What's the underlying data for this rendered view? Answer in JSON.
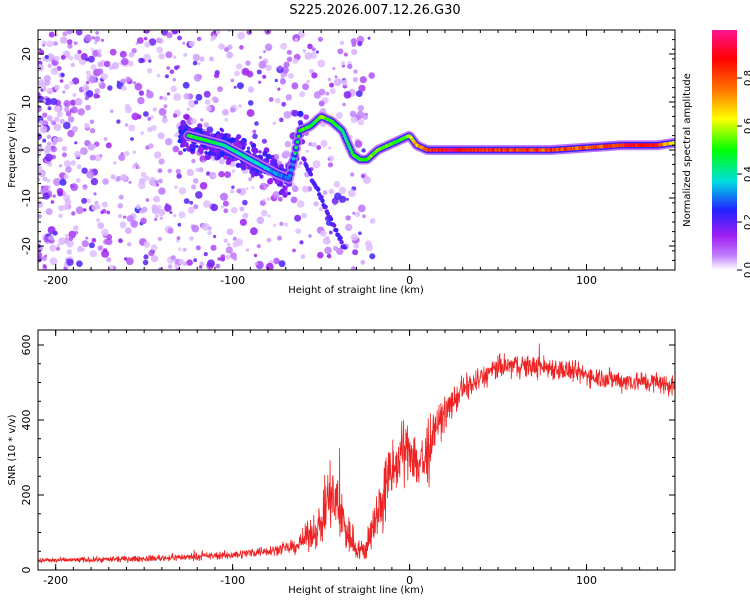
{
  "title": "S225.2026.007.12.26.G30",
  "chart_data": [
    {
      "type": "heatmap",
      "name": "spectrogram",
      "xlabel": "Height of straight line (km)",
      "ylabel": "Frequency (Hz)",
      "xlim": [
        -210,
        150
      ],
      "ylim": [
        -25,
        25
      ],
      "xticks": [
        -200,
        -100,
        0,
        100
      ],
      "yticks": [
        -20,
        -10,
        0,
        10,
        20
      ],
      "colorbar": {
        "label": "Normalized spectral amplitude",
        "range": [
          0,
          1
        ],
        "ticks": [
          0.0,
          0.2,
          0.4,
          0.6,
          0.8
        ],
        "tick_labels": [
          "0.0",
          "0.2",
          "0.4",
          "0.6",
          "0.8"
        ],
        "colors": [
          "#ffffff",
          "#a020f0",
          "#2020ff",
          "#00e0e0",
          "#00ff00",
          "#ffff00",
          "#ff8000",
          "#ff0000",
          "#ff1493"
        ]
      },
      "ridge": {
        "x": [
          -125,
          -115,
          -105,
          -95,
          -85,
          -75,
          -68,
          -62,
          -56,
          -50,
          -44,
          -38,
          -32,
          -28,
          -24,
          -18,
          -12,
          -6,
          0,
          4,
          10,
          20,
          40,
          60,
          80,
          100,
          120,
          140,
          150
        ],
        "freq": [
          3,
          2,
          1,
          -1,
          -3,
          -5,
          -6,
          4,
          5,
          7,
          6,
          4,
          -1,
          -2,
          -2,
          0,
          1,
          2,
          3,
          1,
          0,
          0,
          0,
          0,
          0,
          0.5,
          1,
          1,
          1.5
        ],
        "amp": [
          0.55,
          0.5,
          0.45,
          0.45,
          0.4,
          0.35,
          0.3,
          0.55,
          0.5,
          0.6,
          0.55,
          0.45,
          0.5,
          0.55,
          0.55,
          0.6,
          0.55,
          0.5,
          0.6,
          0.7,
          0.85,
          0.95,
          0.9,
          0.85,
          0.85,
          0.8,
          0.9,
          0.95,
          0.6
        ]
      },
      "descending_branch": {
        "x": [
          -60,
          -55,
          -50,
          -45,
          -40,
          -36
        ],
        "freq": [
          -2,
          -6,
          -10,
          -14,
          -18,
          -21
        ]
      }
    },
    {
      "type": "line",
      "name": "snr",
      "xlabel": "Height of straight line (km)",
      "ylabel": "SNR (10 * v/v)",
      "xlim": [
        -210,
        150
      ],
      "ylim": [
        0,
        640
      ],
      "xticks": [
        -200,
        -100,
        0,
        100
      ],
      "yticks": [
        0,
        200,
        400,
        600
      ],
      "color": "#ee2222",
      "envelope": {
        "x": [
          -210,
          -150,
          -100,
          -75,
          -65,
          -50,
          -45,
          -40,
          -35,
          -30,
          -25,
          -20,
          -15,
          -10,
          -5,
          0,
          5,
          10,
          15,
          20,
          30,
          40,
          50,
          60,
          80,
          100,
          120,
          140,
          150
        ],
        "baseline": [
          25,
          30,
          40,
          55,
          60,
          120,
          200,
          160,
          100,
          60,
          50,
          120,
          200,
          260,
          300,
          330,
          280,
          300,
          380,
          420,
          480,
          510,
          540,
          545,
          540,
          520,
          505,
          500,
          490
        ],
        "spread": [
          8,
          10,
          14,
          18,
          22,
          70,
          130,
          110,
          80,
          40,
          35,
          80,
          120,
          110,
          100,
          90,
          110,
          120,
          70,
          50,
          45,
          40,
          40,
          38,
          38,
          35,
          35,
          35,
          35
        ]
      }
    }
  ]
}
